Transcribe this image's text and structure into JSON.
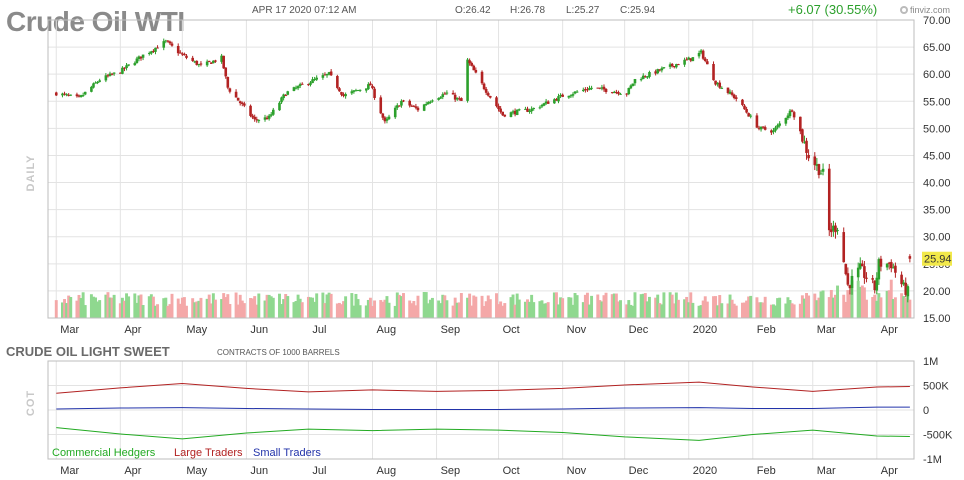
{
  "header": {
    "title": "Crude Oil WTI",
    "timestamp": "APR 17 2020 07:12 AM",
    "open": "O:26.42",
    "high": "H:26.78",
    "low": "L:25.27",
    "close": "C:25.94",
    "change": "+6.07 (30.55%)",
    "brand": "finviz.com"
  },
  "side_label": "DAILY",
  "current_price_label": "25.94",
  "months": [
    "Mar",
    "Apr",
    "May",
    "Jun",
    "Jul",
    "Aug",
    "Sep",
    "Oct",
    "Nov",
    "Dec",
    "2020",
    "Feb",
    "Mar",
    "Apr"
  ],
  "price_ticks": [
    "70.00",
    "65.00",
    "60.00",
    "55.00",
    "50.00",
    "45.00",
    "40.00",
    "35.00",
    "30.00",
    "25.00",
    "20.00",
    "15.00"
  ],
  "cot": {
    "title": "CRUDE OIL LIGHT SWEET",
    "subtitle": "CONTRACTS OF 1000 BARRELS",
    "side_label": "COT",
    "ticks": [
      "1M",
      "500K",
      "0",
      "-500K",
      "-1M"
    ],
    "legend": [
      {
        "label": "Commercial Hedgers",
        "color": "#22aa22"
      },
      {
        "label": "Large Traders",
        "color": "#b22222"
      },
      {
        "label": "Small Traders",
        "color": "#2233aa"
      }
    ]
  },
  "colors": {
    "up": "#2ca02c",
    "down": "#b22222",
    "vol_up": "#8fd88f",
    "vol_down": "#f4a8a8",
    "price_tag": "#f2e94a",
    "grid": "#e3e3e3"
  },
  "chart_data": [
    {
      "type": "candlestick",
      "title": "Crude Oil WTI",
      "xlabel": "",
      "ylabel": "",
      "ylim": [
        15,
        70
      ],
      "x_labels": [
        "Mar",
        "Apr",
        "May",
        "Jun",
        "Jul",
        "Aug",
        "Sep",
        "Oct",
        "Nov",
        "Dec",
        "2020",
        "Feb",
        "Mar",
        "Apr"
      ],
      "anchors": [
        [
          "2019-03-01",
          56.5
        ],
        [
          "2019-03-12",
          55.5
        ],
        [
          "2019-03-22",
          59.0
        ],
        [
          "2019-04-01",
          60.5
        ],
        [
          "2019-04-12",
          63.5
        ],
        [
          "2019-04-23",
          66.0
        ],
        [
          "2019-05-01",
          63.5
        ],
        [
          "2019-05-10",
          61.5
        ],
        [
          "2019-05-20",
          63.0
        ],
        [
          "2019-05-23",
          57.5
        ],
        [
          "2019-06-05",
          51.5
        ],
        [
          "2019-06-12",
          52.0
        ],
        [
          "2019-06-20",
          56.5
        ],
        [
          "2019-07-01",
          58.5
        ],
        [
          "2019-07-11",
          60.0
        ],
        [
          "2019-07-18",
          56.0
        ],
        [
          "2019-07-31",
          58.0
        ],
        [
          "2019-08-07",
          51.0
        ],
        [
          "2019-08-15",
          55.0
        ],
        [
          "2019-08-23",
          53.5
        ],
        [
          "2019-08-30",
          55.5
        ],
        [
          "2019-09-06",
          56.5
        ],
        [
          "2019-09-13",
          55.0
        ],
        [
          "2019-09-16",
          62.5
        ],
        [
          "2019-09-24",
          57.5
        ],
        [
          "2019-10-03",
          52.5
        ],
        [
          "2019-10-09",
          53.0
        ],
        [
          "2019-10-17",
          53.5
        ],
        [
          "2019-11-01",
          56.0
        ],
        [
          "2019-11-15",
          57.5
        ],
        [
          "2019-12-02",
          56.5
        ],
        [
          "2019-12-06",
          59.0
        ],
        [
          "2019-12-20",
          61.0
        ],
        [
          "2020-01-03",
          63.0
        ],
        [
          "2020-01-07",
          64.0
        ],
        [
          "2020-01-14",
          58.5
        ],
        [
          "2020-01-24",
          55.5
        ],
        [
          "2020-02-04",
          50.0
        ],
        [
          "2020-02-11",
          49.5
        ],
        [
          "2020-02-20",
          53.5
        ],
        [
          "2020-02-28",
          45.0
        ],
        [
          "2020-03-06",
          41.5
        ],
        [
          "2020-03-09",
          31.0
        ],
        [
          "2020-03-13",
          32.0
        ],
        [
          "2020-03-18",
          21.0
        ],
        [
          "2020-03-24",
          24.0
        ],
        [
          "2020-03-31",
          20.5
        ],
        [
          "2020-04-02",
          25.0
        ],
        [
          "2020-04-08",
          25.0
        ],
        [
          "2020-04-14",
          20.5
        ],
        [
          "2020-04-16",
          19.8
        ],
        [
          "2020-04-17",
          25.94
        ]
      ],
      "last_candle": {
        "date": "2020-04-17",
        "open": 26.42,
        "high": 26.78,
        "low": 25.27,
        "close": 25.94
      }
    },
    {
      "type": "line",
      "title": "CRUDE OIL LIGHT SWEET",
      "subtitle": "CONTRACTS OF 1000 BARRELS",
      "ylim": [
        -1000000,
        1000000
      ],
      "x_labels": [
        "Mar",
        "Apr",
        "May",
        "Jun",
        "Jul",
        "Aug",
        "Sep",
        "Oct",
        "Nov",
        "Dec",
        "2020",
        "Feb",
        "Mar",
        "Apr"
      ],
      "series": [
        {
          "name": "Large Traders",
          "color": "#b22222",
          "values": [
            [
              "2019-03-01",
              340000
            ],
            [
              "2019-04-01",
              450000
            ],
            [
              "2019-05-01",
              540000
            ],
            [
              "2019-06-01",
              440000
            ],
            [
              "2019-07-01",
              370000
            ],
            [
              "2019-08-01",
              410000
            ],
            [
              "2019-09-01",
              380000
            ],
            [
              "2019-10-01",
              400000
            ],
            [
              "2019-11-01",
              440000
            ],
            [
              "2019-12-01",
              510000
            ],
            [
              "2020-01-06",
              570000
            ],
            [
              "2020-02-01",
              470000
            ],
            [
              "2020-03-01",
              380000
            ],
            [
              "2020-04-01",
              470000
            ],
            [
              "2020-04-17",
              480000
            ]
          ]
        },
        {
          "name": "Small Traders",
          "color": "#2233aa",
          "values": [
            [
              "2019-03-01",
              20000
            ],
            [
              "2019-04-01",
              40000
            ],
            [
              "2019-05-01",
              50000
            ],
            [
              "2019-06-01",
              30000
            ],
            [
              "2019-07-01",
              20000
            ],
            [
              "2019-08-01",
              10000
            ],
            [
              "2019-09-01",
              10000
            ],
            [
              "2019-10-01",
              10000
            ],
            [
              "2019-11-01",
              20000
            ],
            [
              "2019-12-01",
              40000
            ],
            [
              "2020-01-06",
              50000
            ],
            [
              "2020-02-01",
              30000
            ],
            [
              "2020-03-01",
              30000
            ],
            [
              "2020-04-01",
              60000
            ],
            [
              "2020-04-17",
              60000
            ]
          ]
        },
        {
          "name": "Commercial Hedgers",
          "color": "#22aa22",
          "values": [
            [
              "2019-03-01",
              -360000
            ],
            [
              "2019-04-01",
              -490000
            ],
            [
              "2019-05-01",
              -590000
            ],
            [
              "2019-06-01",
              -470000
            ],
            [
              "2019-07-01",
              -390000
            ],
            [
              "2019-08-01",
              -420000
            ],
            [
              "2019-09-01",
              -390000
            ],
            [
              "2019-10-01",
              -410000
            ],
            [
              "2019-11-01",
              -460000
            ],
            [
              "2019-12-01",
              -550000
            ],
            [
              "2020-01-06",
              -620000
            ],
            [
              "2020-02-01",
              -500000
            ],
            [
              "2020-03-01",
              -410000
            ],
            [
              "2020-04-01",
              -530000
            ],
            [
              "2020-04-17",
              -540000
            ]
          ]
        }
      ]
    }
  ]
}
